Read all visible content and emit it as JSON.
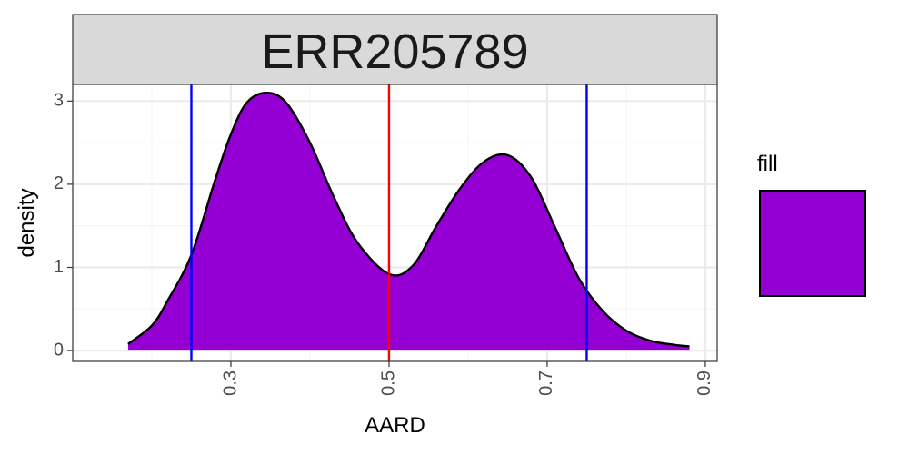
{
  "colors": {
    "fill": "#9400D3",
    "outline": "#000000",
    "center_line": "#FF0000",
    "bound_lines": "#0000FF",
    "strip_background": "#D9D9D9",
    "panel_border": "#333333",
    "grid_major": "#EBEBEB",
    "grid_minor": "#F5F5F5",
    "tick_text": "#4D4D4D"
  },
  "chart_data": {
    "type": "area",
    "facet_label": "ERR205789",
    "xlabel": "AARD",
    "ylabel": "density",
    "xlim": [
      0.1,
      0.915
    ],
    "ylim": [
      -0.13,
      3.2
    ],
    "x_ticks": [
      0.3,
      0.5,
      0.7,
      0.9
    ],
    "x_tick_labels": [
      "0.3",
      "0.5",
      "0.7",
      "0.9"
    ],
    "y_ticks": [
      0,
      1,
      2,
      3
    ],
    "y_tick_labels": [
      "0",
      "1",
      "2",
      "3"
    ],
    "x_minor_ticks": [
      0.2,
      0.4,
      0.6,
      0.8
    ],
    "y_minor_ticks": [
      0.5,
      1.5,
      2.5
    ],
    "grid": true,
    "vertical_lines": [
      {
        "x": 0.25,
        "color": "#0000FF"
      },
      {
        "x": 0.5,
        "color": "#FF0000"
      },
      {
        "x": 0.75,
        "color": "#0000FF"
      }
    ],
    "series": [
      {
        "fill": "#9400D3",
        "x": [
          0.17,
          0.2,
          0.22,
          0.25,
          0.28,
          0.3,
          0.32,
          0.345,
          0.37,
          0.4,
          0.43,
          0.46,
          0.5,
          0.53,
          0.56,
          0.59,
          0.62,
          0.65,
          0.68,
          0.71,
          0.74,
          0.77,
          0.8,
          0.83,
          0.86,
          0.88
        ],
        "y": [
          0.08,
          0.3,
          0.6,
          1.15,
          2.05,
          2.6,
          2.98,
          3.1,
          2.98,
          2.5,
          1.85,
          1.3,
          0.92,
          1.02,
          1.5,
          1.95,
          2.27,
          2.35,
          2.08,
          1.48,
          0.87,
          0.48,
          0.24,
          0.12,
          0.07,
          0.05
        ]
      }
    ],
    "legend": {
      "title": "fill",
      "position": "right",
      "entries": [
        ""
      ]
    }
  }
}
